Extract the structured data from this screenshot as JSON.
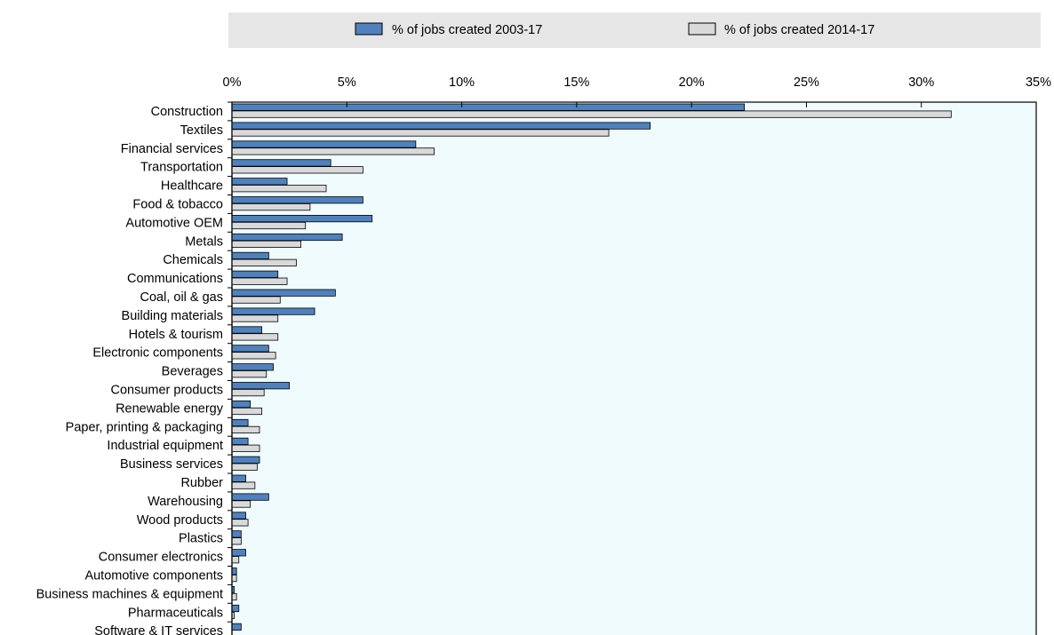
{
  "legend": {
    "series1_label": "% of jobs created 2003-17",
    "series2_label": "% of jobs created 2014-17"
  },
  "colors": {
    "series1": "#4f81bd",
    "series2": "#d9d9d9",
    "plot_background": "#f0fbfd",
    "legend_background": "#e6e6e6"
  },
  "chart_data": {
    "type": "bar",
    "orientation": "horizontal",
    "categories": [
      "Construction",
      "Textiles",
      "Financial services",
      "Transportation",
      "Healthcare",
      "Food & tobacco",
      "Automotive OEM",
      "Metals",
      "Chemicals",
      "Communications",
      "Coal, oil & gas",
      "Building materials",
      "Hotels & tourism",
      "Electronic components",
      "Beverages",
      "Consumer products",
      "Renewable energy",
      "Paper, printing & packaging",
      "Industrial equipment",
      "Business services",
      "Rubber",
      "Warehousing",
      "Wood products",
      "Plastics",
      "Consumer electronics",
      "Automotive components",
      "Business machines & equipment",
      "Pharmaceuticals",
      "Software & IT services"
    ],
    "series": [
      {
        "name": "% of jobs created 2003-17",
        "values": [
          22.3,
          18.2,
          8.0,
          4.3,
          2.4,
          5.7,
          6.1,
          4.8,
          1.6,
          2.0,
          4.5,
          3.6,
          1.3,
          1.6,
          1.8,
          2.5,
          0.8,
          0.7,
          0.7,
          1.2,
          0.6,
          1.6,
          0.6,
          0.4,
          0.6,
          0.2,
          0.1,
          0.3,
          0.4
        ]
      },
      {
        "name": "% of jobs created 2014-17",
        "values": [
          31.3,
          16.4,
          8.8,
          5.7,
          4.1,
          3.4,
          3.2,
          3.0,
          2.8,
          2.4,
          2.1,
          2.0,
          2.0,
          1.9,
          1.5,
          1.4,
          1.3,
          1.2,
          1.2,
          1.1,
          1.0,
          0.8,
          0.7,
          0.4,
          0.3,
          0.2,
          0.2,
          0.1,
          0.0
        ]
      }
    ],
    "x_ticks": [
      "0%",
      "5%",
      "10%",
      "15%",
      "20%",
      "25%",
      "30%",
      "35%"
    ],
    "xlim": [
      0,
      35
    ],
    "grid": false,
    "legend_position": "top"
  }
}
